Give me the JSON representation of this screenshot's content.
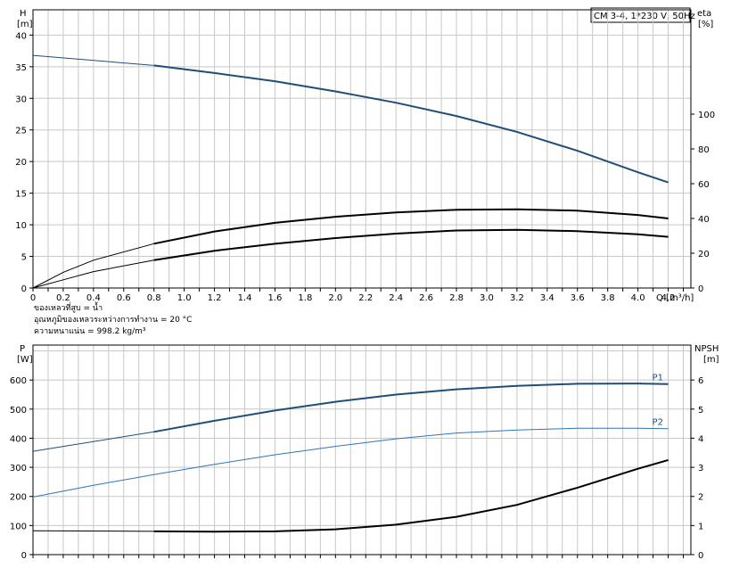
{
  "chart_data": [
    {
      "type": "line",
      "title": "CM 3-4, 1*230 V, 50Hz",
      "ylabel_left": "H",
      "ylabel_left_unit": "[m]",
      "ylabel_right": "eta",
      "ylabel_right_unit": "[%]",
      "xlabel": "Q [m³/h]",
      "xlim": [
        0,
        4.35
      ],
      "ylim_left": [
        0,
        44
      ],
      "ylim_right": [
        0,
        160
      ],
      "x_ticks": [
        "0",
        "0.2",
        "0.4",
        "0.6",
        "0.8",
        "1.0",
        "1.2",
        "1.4",
        "1.6",
        "1.8",
        "2.0",
        "2.2",
        "2.4",
        "2.6",
        "2.8",
        "3.0",
        "3.2",
        "3.4",
        "3.6",
        "3.8",
        "4.0",
        "4.2"
      ],
      "y_ticks_left": [
        "0",
        "5",
        "10",
        "15",
        "20",
        "25",
        "30",
        "35",
        "40"
      ],
      "y_ticks_right": [
        "0",
        "20",
        "40",
        "60",
        "80",
        "100"
      ],
      "grid": true,
      "series": [
        {
          "axis": "left",
          "color": "#1f4e79",
          "x": [
            0,
            0.8,
            1.2,
            1.6,
            2.0,
            2.4,
            2.8,
            3.2,
            3.6,
            4.0,
            4.2
          ],
          "y": [
            36.8,
            35.2,
            34.0,
            32.7,
            31.1,
            29.3,
            27.2,
            24.7,
            21.7,
            18.3,
            16.7
          ]
        },
        {
          "axis": "right",
          "color": "#000000",
          "x": [
            0,
            0.2,
            0.4,
            0.8,
            1.2,
            1.6,
            2.0,
            2.4,
            2.8,
            3.2,
            3.6,
            4.0,
            4.2
          ],
          "y": [
            0,
            9,
            16,
            25.5,
            32.5,
            37.5,
            41.0,
            43.5,
            45.0,
            45.3,
            44.5,
            42.0,
            40.0
          ]
        },
        {
          "axis": "left",
          "color": "#000000",
          "x": [
            0,
            0.2,
            0.4,
            0.8,
            1.2,
            1.6,
            2.0,
            2.4,
            2.8,
            3.2,
            3.6,
            4.0,
            4.2
          ],
          "y": [
            0,
            1.3,
            2.6,
            4.4,
            5.9,
            7.0,
            7.9,
            8.6,
            9.1,
            9.2,
            9.0,
            8.5,
            8.1
          ]
        }
      ],
      "notes": [
        "ของเหลวที่สูบ = น้ำ",
        "อุณหภูมิของเหลวระหว่างการทำงาน = 20 °C",
        "ความหนาแน่น = 998.2 kg/m³"
      ]
    },
    {
      "type": "line",
      "ylabel_left": "P",
      "ylabel_left_unit": "[W]",
      "ylabel_right": "NPSH",
      "ylabel_right_unit": "[m]",
      "xlim": [
        0,
        4.35
      ],
      "ylim_left": [
        0,
        720
      ],
      "ylim_right": [
        0,
        7.2
      ],
      "y_ticks_left": [
        "0",
        "100",
        "200",
        "300",
        "400",
        "500",
        "600"
      ],
      "y_ticks_right": [
        "0",
        "1",
        "2",
        "3",
        "4",
        "5",
        "6"
      ],
      "grid": true,
      "series": [
        {
          "name": "P1",
          "axis": "left",
          "color": "#1f4e79",
          "x": [
            0,
            0.8,
            1.2,
            1.6,
            2.0,
            2.4,
            2.8,
            3.2,
            3.6,
            4.0,
            4.2
          ],
          "y": [
            355,
            422,
            460,
            495,
            525,
            550,
            568,
            580,
            587,
            588,
            586
          ]
        },
        {
          "name": "P2",
          "axis": "left",
          "color": "#2e75b6",
          "x": [
            0,
            0.4,
            0.8,
            1.2,
            1.6,
            2.0,
            2.4,
            2.8,
            3.2,
            3.6,
            4.0,
            4.2
          ],
          "y": [
            198,
            238,
            275,
            310,
            343,
            372,
            398,
            418,
            428,
            434,
            434,
            433
          ]
        },
        {
          "axis": "right",
          "color": "#000000",
          "x": [
            0,
            0.8,
            1.2,
            1.6,
            2.0,
            2.4,
            2.8,
            3.2,
            3.6,
            4.0,
            4.2
          ],
          "y": [
            0.82,
            0.8,
            0.79,
            0.8,
            0.87,
            1.03,
            1.3,
            1.71,
            2.3,
            2.95,
            3.25
          ]
        }
      ]
    }
  ]
}
